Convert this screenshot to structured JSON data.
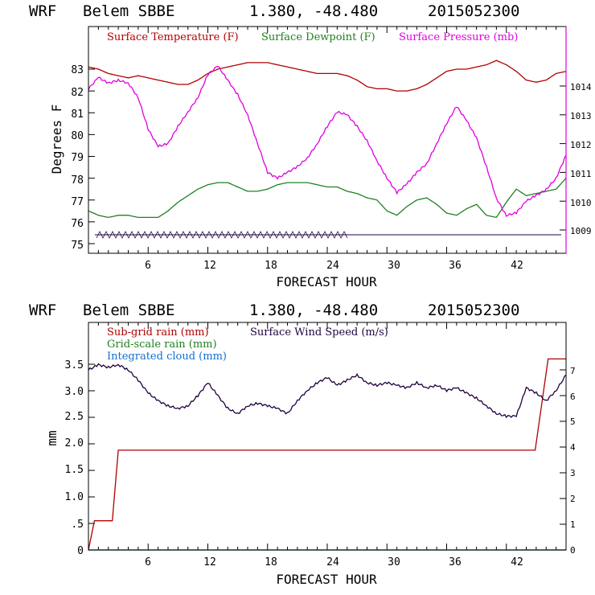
{
  "chart_data": [
    {
      "type": "line",
      "title": {
        "model": "WRF",
        "station": "Belem SBBE",
        "coords": "1.380, -48.480",
        "run": "2015052300"
      },
      "xlabel": "FORECAST HOUR",
      "ylabel": "Degrees F",
      "xlim": [
        0,
        48
      ],
      "xticks": [
        "6",
        "12",
        "18",
        "24",
        "30",
        "36",
        "42"
      ],
      "ylim": [
        74.8,
        84.5
      ],
      "yticks": [
        "75",
        "76",
        "77",
        "78",
        "79",
        "80",
        "81",
        "82",
        "83"
      ],
      "y2lim": [
        1008.2,
        1015.4
      ],
      "y2ticks": [
        "1009",
        "1010",
        "1011",
        "1012",
        "1013",
        "1014"
      ],
      "legend": [
        "Surface Temperature (F)",
        "Surface Dewpoint (F)",
        "Surface Pressure (mb)"
      ],
      "colors": {
        "temperature": "#b00000",
        "dewpoint": "#208020",
        "pressure": "#e000e0",
        "wind": "#200040"
      },
      "series": [
        {
          "name": "Surface Temperature (F)",
          "axis": "left",
          "x": [
            0,
            1,
            2,
            3,
            4,
            5,
            6,
            7,
            8,
            9,
            10,
            11,
            12,
            13,
            14,
            15,
            16,
            17,
            18,
            19,
            20,
            21,
            22,
            23,
            24,
            25,
            26,
            27,
            28,
            29,
            30,
            31,
            32,
            33,
            34,
            35,
            36,
            37,
            38,
            39,
            40,
            41,
            42,
            43,
            44,
            45,
            46,
            47,
            48
          ],
          "y": [
            83.1,
            83.0,
            82.8,
            82.7,
            82.6,
            82.7,
            82.6,
            82.5,
            82.4,
            82.3,
            82.3,
            82.5,
            82.8,
            83.0,
            83.1,
            83.2,
            83.3,
            83.3,
            83.3,
            83.2,
            83.1,
            83.0,
            82.9,
            82.8,
            82.8,
            82.8,
            82.7,
            82.5,
            82.2,
            82.1,
            82.1,
            82.0,
            82.0,
            82.1,
            82.3,
            82.6,
            82.9,
            83.0,
            83.0,
            83.1,
            83.2,
            83.4,
            83.2,
            82.9,
            82.5,
            82.4,
            82.5,
            82.8,
            82.9
          ]
        },
        {
          "name": "Surface Dewpoint (F)",
          "axis": "left",
          "x": [
            0,
            1,
            2,
            3,
            4,
            5,
            6,
            7,
            8,
            9,
            10,
            11,
            12,
            13,
            14,
            15,
            16,
            17,
            18,
            19,
            20,
            21,
            22,
            23,
            24,
            25,
            26,
            27,
            28,
            29,
            30,
            31,
            32,
            33,
            34,
            35,
            36,
            37,
            38,
            39,
            40,
            41,
            42,
            43,
            44,
            45,
            46,
            47,
            48
          ],
          "y": [
            76.5,
            76.3,
            76.2,
            76.3,
            76.3,
            76.2,
            76.2,
            76.2,
            76.5,
            76.9,
            77.2,
            77.5,
            77.7,
            77.8,
            77.8,
            77.6,
            77.4,
            77.4,
            77.5,
            77.7,
            77.8,
            77.8,
            77.8,
            77.7,
            77.6,
            77.6,
            77.4,
            77.3,
            77.1,
            77.0,
            76.5,
            76.3,
            76.7,
            77.0,
            77.1,
            76.8,
            76.4,
            76.3,
            76.6,
            76.8,
            76.3,
            76.2,
            76.9,
            77.5,
            77.2,
            77.3,
            77.4,
            77.5,
            78.0
          ]
        },
        {
          "name": "Surface Pressure (mb)",
          "axis": "right",
          "x": [
            0,
            1,
            2,
            3,
            4,
            5,
            6,
            7,
            8,
            9,
            10,
            11,
            12,
            13,
            14,
            15,
            16,
            17,
            18,
            19,
            20,
            21,
            22,
            23,
            24,
            25,
            26,
            27,
            28,
            29,
            30,
            31,
            32,
            33,
            34,
            35,
            36,
            37,
            38,
            39,
            40,
            41,
            42,
            43,
            44,
            45,
            46,
            47,
            48
          ],
          "y": [
            1013.9,
            1014.3,
            1014.1,
            1014.2,
            1014.1,
            1013.6,
            1012.5,
            1011.9,
            1012.0,
            1012.6,
            1013.1,
            1013.6,
            1014.4,
            1014.7,
            1014.2,
            1013.7,
            1013.0,
            1012.0,
            1011.0,
            1010.8,
            1011.0,
            1011.2,
            1011.5,
            1012.0,
            1012.6,
            1013.1,
            1013.0,
            1012.6,
            1012.1,
            1011.4,
            1010.8,
            1010.3,
            1010.6,
            1011.0,
            1011.3,
            1012.0,
            1012.7,
            1013.3,
            1012.8,
            1012.2,
            1011.2,
            1010.1,
            1009.5,
            1009.6,
            1010.0,
            1010.2,
            1010.4,
            1010.8,
            1011.6
          ]
        }
      ]
    },
    {
      "type": "line",
      "title": {
        "model": "WRF",
        "station": "Belem SBBE",
        "coords": "1.380, -48.480",
        "run": "2015052300"
      },
      "xlabel": "FORECAST HOUR",
      "ylabel": "mm",
      "xlim": [
        0,
        48
      ],
      "xticks": [
        "6",
        "12",
        "18",
        "24",
        "30",
        "36",
        "42"
      ],
      "ylim": [
        0,
        4.2
      ],
      "yticks": [
        "0",
        ".5",
        "1.0",
        "1.5",
        "2.0",
        "2.5",
        "3.0",
        "3.5"
      ],
      "y2lim": [
        0,
        8.45
      ],
      "y2ticks": [
        "0",
        "1",
        "2",
        "3",
        "4",
        "5",
        "6",
        "7"
      ],
      "legend": [
        "Sub-grid rain (mm)",
        "Grid-scale rain (mm)",
        "Integrated cloud (mm)",
        "Surface Wind Speed (m/s)"
      ],
      "colors": {
        "subgrid": "#b00000",
        "gridscale": "#208020",
        "cloud": "#1070d0",
        "wind": "#200040"
      },
      "series": [
        {
          "name": "Sub-grid rain (mm)",
          "axis": "left",
          "step": true,
          "x": [
            0,
            0.6,
            2.4,
            3,
            44.9,
            46.2,
            48
          ],
          "y": [
            0,
            0.55,
            0.55,
            1.88,
            1.88,
            3.6,
            3.6
          ]
        },
        {
          "name": "Grid-scale rain (mm)",
          "axis": "left",
          "x": [
            0,
            48
          ],
          "y": [
            0,
            0
          ]
        },
        {
          "name": "Integrated cloud (mm)",
          "axis": "left",
          "x": [
            0,
            48
          ],
          "y": [
            0,
            0
          ]
        },
        {
          "name": "Surface Wind Speed (m/s)",
          "axis": "right",
          "x": [
            0,
            1,
            2,
            3,
            4,
            5,
            6,
            7,
            8,
            9,
            10,
            11,
            12,
            13,
            14,
            15,
            16,
            17,
            18,
            19,
            20,
            21,
            22,
            23,
            24,
            25,
            26,
            27,
            28,
            29,
            30,
            31,
            32,
            33,
            34,
            35,
            36,
            37,
            38,
            39,
            40,
            41,
            42,
            43,
            44,
            45,
            46,
            47,
            48
          ],
          "y": [
            7.0,
            7.2,
            7.1,
            7.2,
            7.0,
            6.6,
            6.1,
            5.8,
            5.6,
            5.5,
            5.6,
            6.0,
            6.5,
            6.0,
            5.5,
            5.3,
            5.6,
            5.7,
            5.6,
            5.5,
            5.3,
            5.8,
            6.2,
            6.5,
            6.7,
            6.4,
            6.6,
            6.8,
            6.5,
            6.4,
            6.5,
            6.4,
            6.3,
            6.5,
            6.3,
            6.4,
            6.2,
            6.3,
            6.1,
            5.9,
            5.6,
            5.3,
            5.2,
            5.2,
            6.3,
            6.1,
            5.8,
            6.2,
            6.8
          ]
        }
      ]
    }
  ]
}
